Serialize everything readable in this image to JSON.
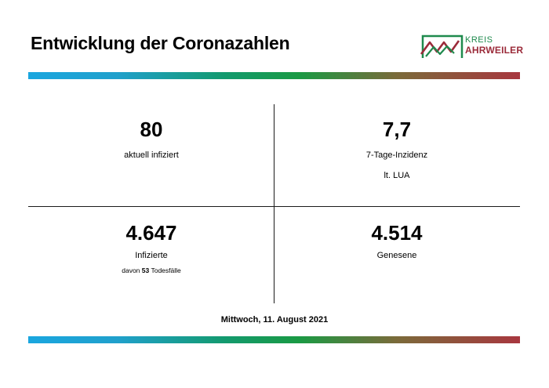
{
  "header": {
    "title": "Entwicklung der Coronazahlen",
    "logo": {
      "line1": "KREIS",
      "line2": "AHRWEILER",
      "icon": "kreis-ahrweiler-logo-mark"
    }
  },
  "stats": {
    "infected_now": {
      "value": "80",
      "label": "aktuell infiziert"
    },
    "incidence": {
      "value": "7,7",
      "label_line1": "7-Tage-Inzidenz",
      "label_line2": "lt. LUA"
    },
    "infected_total": {
      "value": "4.647",
      "label": "Infizierte",
      "deaths_prefix": "davon",
      "deaths_value": "53",
      "deaths_suffix": "Todesfälle"
    },
    "recovered": {
      "value": "4.514",
      "label": "Genesene"
    }
  },
  "footer": {
    "date": "Mittwoch, 11. August 2021"
  },
  "colors": {
    "bar_start": "#1aa6df",
    "bar_mid": "#1a9a44",
    "bar_end": "#a8373f",
    "logo_green": "#1f8a4d",
    "logo_red": "#9b2b3a"
  }
}
